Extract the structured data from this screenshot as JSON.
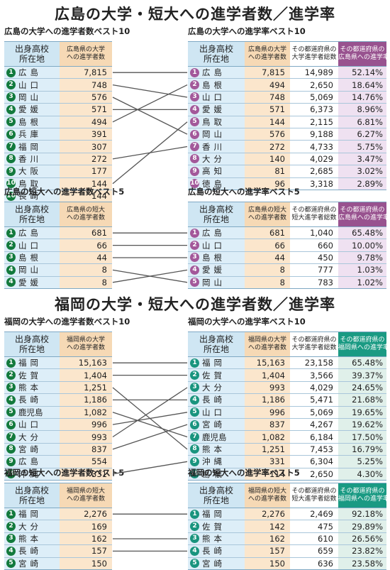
{
  "sections": [
    {
      "title": "広島の大学・短大への進学者数／進学率",
      "theme": "purple",
      "blocks": [
        {
          "left_title": "広島の大学への進学者数ベスト10",
          "right_title": "広島の大学への進学率ベスト10",
          "left_headers": [
            "出身高校\n所在地",
            "広島県の大学\nへの進学者数"
          ],
          "right_headers": [
            "出身高校\n所在地",
            "広島県の大学\nへの進学者数",
            "その都道府県の\n大学進学者総数",
            "その都道府県の\n広島県への進学率"
          ],
          "left_rows": [
            {
              "rank": "1",
              "pref": "広島",
              "count": "7,815"
            },
            {
              "rank": "2",
              "pref": "山口",
              "count": "748"
            },
            {
              "rank": "3",
              "pref": "岡山",
              "count": "576"
            },
            {
              "rank": "4",
              "pref": "愛媛",
              "count": "571"
            },
            {
              "rank": "5",
              "pref": "島根",
              "count": "494"
            },
            {
              "rank": "6",
              "pref": "兵庫",
              "count": "391"
            },
            {
              "rank": "7",
              "pref": "福岡",
              "count": "307"
            },
            {
              "rank": "8",
              "pref": "香川",
              "count": "272"
            },
            {
              "rank": "9",
              "pref": "大阪",
              "count": "177"
            },
            {
              "rank": "10",
              "pref": "鳥取",
              "count": "144"
            },
            {
              "rank": "10",
              "pref": "長崎",
              "count": "144"
            }
          ],
          "right_rows": [
            {
              "rank": "1",
              "pref": "広島",
              "count": "7,815",
              "total": "14,989",
              "rate": "52.14%"
            },
            {
              "rank": "2",
              "pref": "島根",
              "count": "494",
              "total": "2,650",
              "rate": "18.64%"
            },
            {
              "rank": "3",
              "pref": "山口",
              "count": "748",
              "total": "5,069",
              "rate": "14.76%"
            },
            {
              "rank": "4",
              "pref": "愛媛",
              "count": "571",
              "total": "6,373",
              "rate": "8.96%"
            },
            {
              "rank": "5",
              "pref": "鳥取",
              "count": "144",
              "total": "2,115",
              "rate": "6.81%"
            },
            {
              "rank": "6",
              "pref": "岡山",
              "count": "576",
              "total": "9,188",
              "rate": "6.27%"
            },
            {
              "rank": "7",
              "pref": "香川",
              "count": "272",
              "total": "4,733",
              "rate": "5.75%"
            },
            {
              "rank": "8",
              "pref": "大分",
              "count": "140",
              "total": "4,029",
              "rate": "3.47%"
            },
            {
              "rank": "9",
              "pref": "高知",
              "count": "81",
              "total": "2,685",
              "rate": "3.02%"
            },
            {
              "rank": "10",
              "pref": "徳島",
              "count": "96",
              "total": "3,318",
              "rate": "2.89%"
            }
          ]
        },
        {
          "left_title": "広島の短大への進学者数ベスト5",
          "right_title": "広島の短大への進学率ベスト5",
          "left_headers": [
            "出身高校\n所在地",
            "広島県の短大\nへの進学者数"
          ],
          "right_headers": [
            "出身高校\n所在地",
            "広島県の短大\nへの進学者数",
            "その都道府県の\n短大進学者総数",
            "その都道府県の\n広島県への進学率"
          ],
          "left_rows": [
            {
              "rank": "1",
              "pref": "広島",
              "count": "681"
            },
            {
              "rank": "2",
              "pref": "山口",
              "count": "66"
            },
            {
              "rank": "3",
              "pref": "島根",
              "count": "44"
            },
            {
              "rank": "4",
              "pref": "岡山",
              "count": "8"
            },
            {
              "rank": "4",
              "pref": "愛媛",
              "count": "8"
            }
          ],
          "right_rows": [
            {
              "rank": "1",
              "pref": "広島",
              "count": "681",
              "total": "1,040",
              "rate": "65.48%"
            },
            {
              "rank": "2",
              "pref": "山口",
              "count": "66",
              "total": "660",
              "rate": "10.00%"
            },
            {
              "rank": "3",
              "pref": "島根",
              "count": "44",
              "total": "450",
              "rate": "9.78%"
            },
            {
              "rank": "4",
              "pref": "愛媛",
              "count": "8",
              "total": "777",
              "rate": "1.03%"
            },
            {
              "rank": "5",
              "pref": "岡山",
              "count": "8",
              "total": "783",
              "rate": "1.02%"
            }
          ]
        }
      ]
    },
    {
      "title": "福岡の大学・短大への進学者数／進学率",
      "theme": "teal",
      "blocks": [
        {
          "left_title": "福岡の大学への進学者数ベスト10",
          "right_title": "福岡の大学への進学率ベスト10",
          "left_headers": [
            "出身高校\n所在地",
            "福岡県の大学\nへの進学者数"
          ],
          "right_headers": [
            "出身高校\n所在地",
            "福岡県の大学\nへの進学者数",
            "その都道府県の\n大学進学者総数",
            "その都道府県の\n福岡県への進学率"
          ],
          "left_rows": [
            {
              "rank": "1",
              "pref": "福岡",
              "count": "15,163"
            },
            {
              "rank": "2",
              "pref": "佐賀",
              "count": "1,404"
            },
            {
              "rank": "3",
              "pref": "熊本",
              "count": "1,251"
            },
            {
              "rank": "4",
              "pref": "長崎",
              "count": "1,186"
            },
            {
              "rank": "5",
              "pref": "鹿児島",
              "count": "1,082"
            },
            {
              "rank": "6",
              "pref": "山口",
              "count": "996"
            },
            {
              "rank": "7",
              "pref": "大分",
              "count": "993"
            },
            {
              "rank": "8",
              "pref": "宮崎",
              "count": "837"
            },
            {
              "rank": "9",
              "pref": "広島",
              "count": "554"
            },
            {
              "rank": "10",
              "pref": "沖縄",
              "count": "331"
            }
          ],
          "right_rows": [
            {
              "rank": "1",
              "pref": "福岡",
              "count": "15,163",
              "total": "23,158",
              "rate": "65.48%"
            },
            {
              "rank": "2",
              "pref": "佐賀",
              "count": "1,404",
              "total": "3,566",
              "rate": "39.37%"
            },
            {
              "rank": "3",
              "pref": "大分",
              "count": "993",
              "total": "4,029",
              "rate": "24.65%"
            },
            {
              "rank": "4",
              "pref": "長崎",
              "count": "1,186",
              "total": "5,471",
              "rate": "21.68%"
            },
            {
              "rank": "5",
              "pref": "山口",
              "count": "996",
              "total": "5,069",
              "rate": "19.65%"
            },
            {
              "rank": "6",
              "pref": "宮崎",
              "count": "837",
              "total": "4,267",
              "rate": "19.62%"
            },
            {
              "rank": "7",
              "pref": "鹿児島",
              "count": "1,082",
              "total": "6,184",
              "rate": "17.50%"
            },
            {
              "rank": "8",
              "pref": "熊本",
              "count": "1,251",
              "total": "7,453",
              "rate": "16.79%"
            },
            {
              "rank": "9",
              "pref": "沖縄",
              "count": "331",
              "total": "6,304",
              "rate": "5.25%"
            },
            {
              "rank": "10",
              "pref": "島根",
              "count": "114",
              "total": "2,650",
              "rate": "4.30%"
            }
          ]
        },
        {
          "left_title": "福岡の短大への進学者数ベスト5",
          "right_title": "福岡の短大への進学率ベスト5",
          "left_headers": [
            "出身高校\n所在地",
            "福岡県の短大\nへの進学者数"
          ],
          "right_headers": [
            "出身高校\n所在地",
            "福岡県の短大\nへの進学者数",
            "その都道府県の\n短大進学者総数",
            "その都道府県の\n福岡県への進学率"
          ],
          "left_rows": [
            {
              "rank": "1",
              "pref": "福岡",
              "count": "2,276"
            },
            {
              "rank": "2",
              "pref": "大分",
              "count": "169"
            },
            {
              "rank": "3",
              "pref": "熊本",
              "count": "162"
            },
            {
              "rank": "4",
              "pref": "長崎",
              "count": "157"
            },
            {
              "rank": "5",
              "pref": "宮崎",
              "count": "150"
            }
          ],
          "right_rows": [
            {
              "rank": "1",
              "pref": "福岡",
              "count": "2,276",
              "total": "2,469",
              "rate": "92.18%"
            },
            {
              "rank": "2",
              "pref": "佐賀",
              "count": "142",
              "total": "475",
              "rate": "29.89%"
            },
            {
              "rank": "3",
              "pref": "熊本",
              "count": "162",
              "total": "610",
              "rate": "26.56%"
            },
            {
              "rank": "4",
              "pref": "長崎",
              "count": "157",
              "total": "659",
              "rate": "23.82%"
            },
            {
              "rank": "5",
              "pref": "宮崎",
              "count": "150",
              "total": "636",
              "rate": "23.58%"
            }
          ]
        }
      ]
    }
  ]
}
